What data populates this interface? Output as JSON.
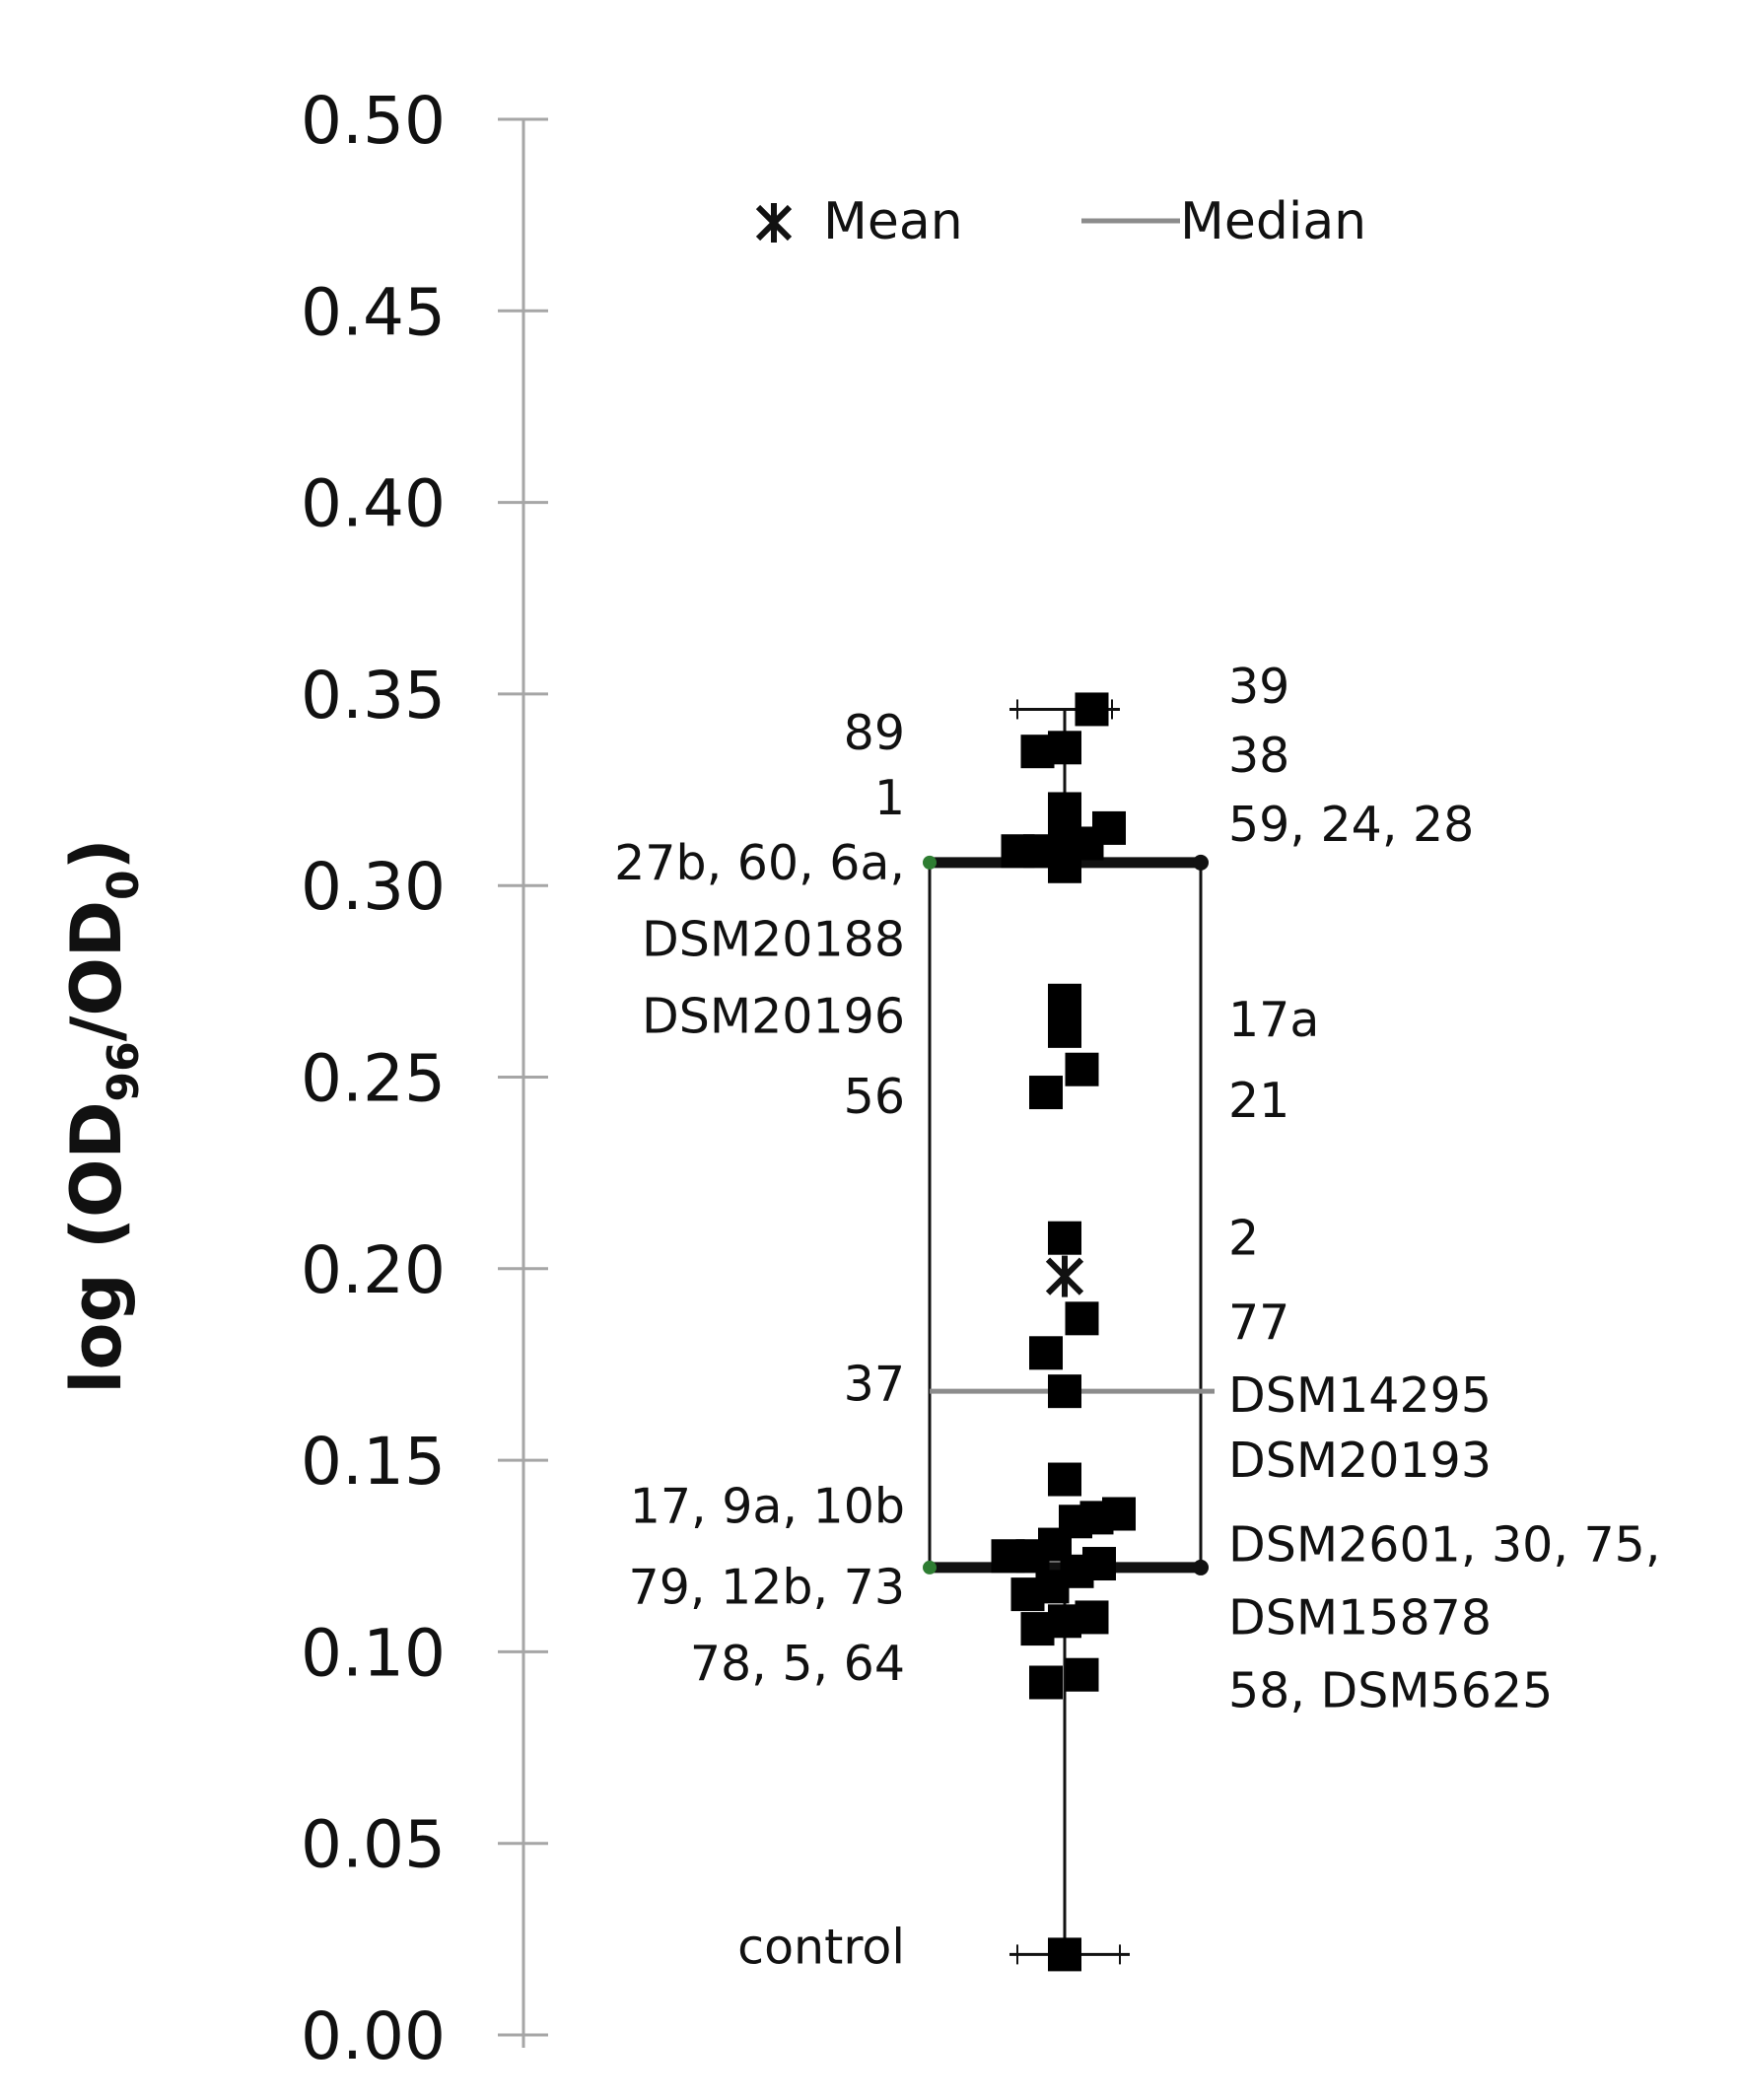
{
  "chart_data": {
    "type": "box-scatter",
    "title": "",
    "xlabel": "",
    "ylabel": {
      "prefix": "log (OD",
      "sub1": "96",
      "mid": "/OD",
      "sub2": "0",
      "suffix": ")"
    },
    "ylim": [
      0,
      0.5
    ],
    "yticks": [
      "0.00",
      "0.05",
      "0.10",
      "0.15",
      "0.20",
      "0.25",
      "0.30",
      "0.35",
      "0.40",
      "0.45",
      "0.50"
    ],
    "grid": false,
    "legend": {
      "position": "top",
      "mean_label": "Mean",
      "median_label": "Median",
      "mean_symbol": "✱"
    },
    "box": {
      "q1": 0.122,
      "median": 0.168,
      "q3": 0.306,
      "whisker_low": 0.021,
      "whisker_high": 0.346,
      "mean": 0.198
    },
    "points": [
      {
        "dx": 0.55,
        "y": 0.346
      },
      {
        "dx": -0.55,
        "y": 0.335
      },
      {
        "dx": 0,
        "y": 0.336
      },
      {
        "dx": 0,
        "y": 0.32
      },
      {
        "dx": 0.9,
        "y": 0.315
      },
      {
        "dx": -0.95,
        "y": 0.309
      },
      {
        "dx": -0.5,
        "y": 0.309
      },
      {
        "dx": 0.45,
        "y": 0.311
      },
      {
        "dx": 0,
        "y": 0.312
      },
      {
        "dx": 0,
        "y": 0.305
      },
      {
        "dx": 0,
        "y": 0.27
      },
      {
        "dx": 0,
        "y": 0.266
      },
      {
        "dx": 0,
        "y": 0.262
      },
      {
        "dx": 0.35,
        "y": 0.252
      },
      {
        "dx": -0.38,
        "y": 0.246
      },
      {
        "dx": 0,
        "y": 0.208
      },
      {
        "dx": 0.35,
        "y": 0.187
      },
      {
        "dx": -0.38,
        "y": 0.178
      },
      {
        "dx": 0,
        "y": 0.168
      },
      {
        "dx": 0,
        "y": 0.145
      },
      {
        "dx": 0.22,
        "y": 0.134
      },
      {
        "dx": 0.65,
        "y": 0.135
      },
      {
        "dx": 1.1,
        "y": 0.136
      },
      {
        "dx": -1.15,
        "y": 0.125
      },
      {
        "dx": -0.65,
        "y": 0.125
      },
      {
        "dx": -0.2,
        "y": 0.128
      },
      {
        "dx": 0.25,
        "y": 0.121
      },
      {
        "dx": 0.7,
        "y": 0.123
      },
      {
        "dx": -0.75,
        "y": 0.115
      },
      {
        "dx": -0.25,
        "y": 0.117
      },
      {
        "dx": -0.55,
        "y": 0.106
      },
      {
        "dx": 0,
        "y": 0.108
      },
      {
        "dx": 0.55,
        "y": 0.109
      },
      {
        "dx": -0.38,
        "y": 0.092
      },
      {
        "dx": 0.35,
        "y": 0.094
      },
      {
        "dx": 0,
        "y": 0.021
      }
    ],
    "annotations_left": [
      {
        "text": "89",
        "y": 0.34
      },
      {
        "text": "1",
        "y": 0.323
      },
      {
        "text": "27b, 60, 6a,",
        "y": 0.306
      },
      {
        "text": "DSM20188",
        "y": 0.286
      },
      {
        "text": "DSM20196",
        "y": 0.266
      },
      {
        "text": "56",
        "y": 0.245
      },
      {
        "text": "37",
        "y": 0.17
      },
      {
        "text": "17, 9a, 10b",
        "y": 0.138
      },
      {
        "text": "79, 12b, 73",
        "y": 0.117
      },
      {
        "text": "78, 5, 64",
        "y": 0.097
      },
      {
        "text": "control",
        "y": 0.023
      }
    ],
    "annotations_right": [
      {
        "text": "39",
        "y": 0.352
      },
      {
        "text": "38",
        "y": 0.334
      },
      {
        "text": "59, 24, 28",
        "y": 0.316
      },
      {
        "text": "17a",
        "y": 0.265
      },
      {
        "text": "21",
        "y": 0.244
      },
      {
        "text": "2",
        "y": 0.208
      },
      {
        "text": "77",
        "y": 0.186
      },
      {
        "text": "DSM14295",
        "y": 0.167
      },
      {
        "text": "DSM20193",
        "y": 0.15
      },
      {
        "text": "DSM2601, 30, 75,",
        "y": 0.128
      },
      {
        "text": "DSM15878",
        "y": 0.109
      },
      {
        "text": "58, DSM5625",
        "y": 0.09
      }
    ]
  }
}
